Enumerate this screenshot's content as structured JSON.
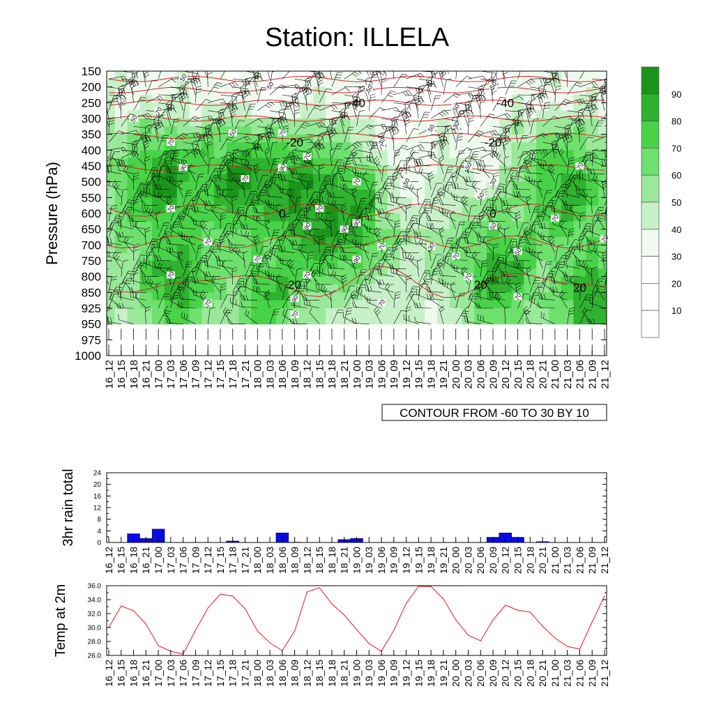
{
  "title": "Station: ILLELA",
  "colors": {
    "fill_levels": [
      "#ffffff",
      "#ffffff",
      "#ffffff",
      "#eefaee",
      "#c8f0c8",
      "#9ae89a",
      "#6ee06e",
      "#48d248",
      "#2fb22f",
      "#1a941a"
    ],
    "temp_contour": "#e02020",
    "rain_bar": "#0a0ae6",
    "temp_line": "#ff1010",
    "barb": "#000000"
  },
  "time_labels": [
    "16_12",
    "16_15",
    "16_18",
    "16_21",
    "17_00",
    "17_03",
    "17_06",
    "17_09",
    "17_12",
    "17_15",
    "17_18",
    "17_21",
    "18_00",
    "18_03",
    "18_06",
    "18_09",
    "18_12",
    "18_15",
    "18_18",
    "18_21",
    "19_00",
    "19_03",
    "19_06",
    "19_09",
    "19_12",
    "19_15",
    "19_18",
    "19_21",
    "20_00",
    "20_03",
    "20_06",
    "20_09",
    "20_12",
    "20_15",
    "20_18",
    "20_21",
    "21_00",
    "21_03",
    "21_06",
    "21_09",
    "21_12"
  ],
  "chart_data": [
    {
      "type": "heatmap",
      "title": "Station: ILLELA",
      "ylabel": "Pressure (hPa)",
      "y_ticks": [
        150,
        200,
        250,
        300,
        350,
        400,
        450,
        500,
        550,
        600,
        650,
        700,
        750,
        800,
        850,
        925,
        950,
        975,
        1000
      ],
      "fill_variable": "relative humidity (%)",
      "colorbar": {
        "levels": [
          10,
          20,
          30,
          40,
          50,
          60,
          70,
          80,
          90
        ]
      },
      "contour_info": "CONTOUR FROM -60 TO 30 BY 10",
      "contour_labels": [
        {
          "time": "19_00",
          "pressure": 250,
          "text": "-40"
        },
        {
          "time": "20_12",
          "pressure": 250,
          "text": "-40"
        },
        {
          "time": "18_09",
          "pressure": 375,
          "text": "-20"
        },
        {
          "time": "20_09",
          "pressure": 375,
          "text": "-20"
        },
        {
          "time": "18_06",
          "pressure": 600,
          "text": "0"
        },
        {
          "time": "20_09",
          "pressure": 600,
          "text": "0"
        },
        {
          "time": "18_09",
          "pressure": 825,
          "text": "20"
        },
        {
          "time": "20_06",
          "pressure": 825,
          "text": "20"
        },
        {
          "time": "21_06",
          "pressure": 835,
          "text": "20"
        }
      ],
      "rh_labels": [
        {
          "time": "17_06",
          "pressure": 170,
          "text": "50"
        },
        {
          "time": "18_03",
          "pressure": 195,
          "text": "50"
        },
        {
          "time": "19_03",
          "pressure": 205,
          "text": "50"
        },
        {
          "time": "20_09",
          "pressure": 195,
          "text": "50"
        },
        {
          "time": "20_00",
          "pressure": 265,
          "text": "50"
        },
        {
          "time": "17_00",
          "pressure": 275,
          "text": "70"
        },
        {
          "time": "16_18",
          "pressure": 300,
          "text": "50"
        },
        {
          "time": "17_18",
          "pressure": 345,
          "text": "50"
        },
        {
          "time": "18_06",
          "pressure": 345,
          "text": "70"
        },
        {
          "time": "19_18",
          "pressure": 330,
          "text": "50"
        },
        {
          "time": "20_00",
          "pressure": 320,
          "text": "30"
        },
        {
          "time": "19_06",
          "pressure": 372,
          "text": "30"
        },
        {
          "time": "17_03",
          "pressure": 375,
          "text": "70"
        },
        {
          "time": "21_15",
          "pressure": 340,
          "text": "50"
        },
        {
          "time": "18_12",
          "pressure": 420,
          "text": "70"
        },
        {
          "time": "17_06",
          "pressure": 455,
          "text": "90"
        },
        {
          "time": "18_06",
          "pressure": 455,
          "text": "90"
        },
        {
          "time": "20_03",
          "pressure": 450,
          "text": "50"
        },
        {
          "time": "21_06",
          "pressure": 450,
          "text": "70"
        },
        {
          "time": "17_21",
          "pressure": 490,
          "text": "70"
        },
        {
          "time": "19_00",
          "pressure": 500,
          "text": "70"
        },
        {
          "time": "19_12",
          "pressure": 500,
          "text": "50"
        },
        {
          "time": "20_09",
          "pressure": 500,
          "text": "30"
        },
        {
          "time": "20_06",
          "pressure": 545,
          "text": "50"
        },
        {
          "time": "17_03",
          "pressure": 585,
          "text": "70"
        },
        {
          "time": "18_15",
          "pressure": 585,
          "text": "70"
        },
        {
          "time": "21_00",
          "pressure": 615,
          "text": "70"
        },
        {
          "time": "18_12",
          "pressure": 640,
          "text": "90"
        },
        {
          "time": "18_21",
          "pressure": 650,
          "text": "90"
        },
        {
          "time": "19_00",
          "pressure": 630,
          "text": "90"
        },
        {
          "time": "20_09",
          "pressure": 640,
          "text": "50"
        },
        {
          "time": "17_12",
          "pressure": 690,
          "text": "70"
        },
        {
          "time": "19_06",
          "pressure": 705,
          "text": "70"
        },
        {
          "time": "19_18",
          "pressure": 705,
          "text": "30"
        },
        {
          "time": "21_12",
          "pressure": 680,
          "text": "70"
        },
        {
          "time": "18_00",
          "pressure": 745,
          "text": "70"
        },
        {
          "time": "19_00",
          "pressure": 745,
          "text": "90"
        },
        {
          "time": "20_00",
          "pressure": 735,
          "text": "70"
        },
        {
          "time": "20_15",
          "pressure": 720,
          "text": "50"
        },
        {
          "time": "17_03",
          "pressure": 795,
          "text": "70"
        },
        {
          "time": "18_12",
          "pressure": 795,
          "text": "70"
        },
        {
          "time": "20_03",
          "pressure": 800,
          "text": "70"
        },
        {
          "time": "18_09",
          "pressure": 880,
          "text": "90"
        },
        {
          "time": "17_12",
          "pressure": 900,
          "text": "70"
        },
        {
          "time": "19_06",
          "pressure": 900,
          "text": "70"
        },
        {
          "time": "20_15",
          "pressure": 870,
          "text": "70"
        },
        {
          "time": "18_09",
          "pressure": 935,
          "text": "70"
        }
      ],
      "rh_hotspots": [
        {
          "t": 4.5,
          "p": 500,
          "v": 92
        },
        {
          "t": 10.5,
          "p": 500,
          "v": 92
        },
        {
          "t": 15,
          "p": 520,
          "v": 90
        },
        {
          "t": 17,
          "p": 650,
          "v": 88
        },
        {
          "t": 19.5,
          "p": 600,
          "v": 90
        },
        {
          "t": 5.5,
          "p": 820,
          "v": 88
        },
        {
          "t": 13,
          "p": 850,
          "v": 80
        },
        {
          "t": 31.5,
          "p": 800,
          "v": 88
        },
        {
          "t": 37,
          "p": 520,
          "v": 85
        },
        {
          "t": 39,
          "p": 900,
          "v": 90
        }
      ]
    },
    {
      "type": "bar",
      "ylabel": "3hr rain total",
      "ylim": [
        0,
        24
      ],
      "yticks": [
        0,
        4,
        8,
        12,
        16,
        20,
        24
      ],
      "categories": [
        "16_12",
        "16_15",
        "16_18",
        "16_21",
        "17_00",
        "17_03",
        "17_06",
        "17_09",
        "17_12",
        "17_15",
        "17_18",
        "17_21",
        "18_00",
        "18_03",
        "18_06",
        "18_09",
        "18_12",
        "18_15",
        "18_18",
        "18_21",
        "19_00",
        "19_03",
        "19_06",
        "19_09",
        "19_12",
        "19_15",
        "19_18",
        "19_21",
        "20_00",
        "20_03",
        "20_06",
        "20_09",
        "20_12",
        "20_15",
        "20_18",
        "20_21",
        "21_00",
        "21_03",
        "21_06",
        "21_09",
        "21_12"
      ],
      "values": [
        0,
        0,
        3.0,
        1.4,
        4.6,
        0,
        0,
        0,
        0,
        0,
        0.5,
        0,
        0,
        0,
        3.3,
        0.1,
        0,
        0,
        0,
        1.0,
        1.4,
        0,
        0,
        0,
        0,
        0,
        0,
        0,
        0,
        0,
        0,
        1.8,
        3.3,
        1.8,
        0,
        0.3,
        0,
        0,
        0,
        0,
        0
      ]
    },
    {
      "type": "line",
      "ylabel": "Temp at 2m",
      "ylim": [
        26.0,
        36.0
      ],
      "yticks": [
        "26.0",
        "28.0",
        "30.0",
        "32.0",
        "34.0",
        "36.0"
      ],
      "x": [
        "16_12",
        "16_15",
        "16_18",
        "16_21",
        "17_00",
        "17_03",
        "17_06",
        "17_09",
        "17_12",
        "17_15",
        "17_18",
        "17_21",
        "18_00",
        "18_03",
        "18_06",
        "18_09",
        "18_12",
        "18_15",
        "18_18",
        "18_21",
        "19_00",
        "19_03",
        "19_06",
        "19_09",
        "19_12",
        "19_15",
        "19_18",
        "19_21",
        "20_00",
        "20_03",
        "20_06",
        "20_09",
        "20_12",
        "20_15",
        "20_18",
        "20_21",
        "21_00",
        "21_03",
        "21_06",
        "21_09",
        "21_12"
      ],
      "values": [
        30.0,
        33.1,
        32.4,
        30.5,
        27.4,
        26.6,
        26.2,
        29.6,
        32.8,
        34.8,
        34.5,
        32.7,
        29.5,
        27.8,
        26.7,
        29.5,
        35.1,
        35.7,
        33.4,
        31.8,
        29.7,
        27.7,
        26.6,
        29.6,
        33.5,
        35.9,
        35.9,
        34.1,
        31.1,
        28.9,
        28.1,
        31.1,
        33.2,
        32.5,
        32.2,
        30.2,
        28.5,
        27.3,
        26.9,
        30.8,
        34.5
      ]
    }
  ]
}
